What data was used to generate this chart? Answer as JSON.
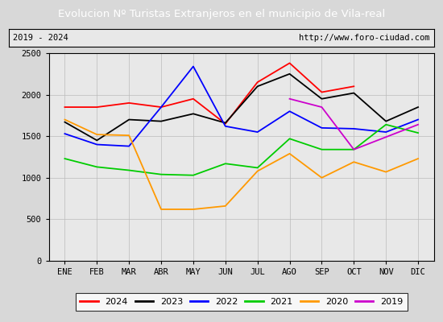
{
  "title": "Evolucion Nº Turistas Extranjeros en el municipio de Vila-real",
  "subtitle_left": "2019 - 2024",
  "subtitle_right": "http://www.foro-ciudad.com",
  "title_bg_color": "#4472c4",
  "title_text_color": "#ffffff",
  "subtitle_bg_color": "#e8e8e8",
  "background_color": "#d8d8d8",
  "plot_bg_color": "#e8e8e8",
  "months": [
    "ENE",
    "FEB",
    "MAR",
    "ABR",
    "MAY",
    "JUN",
    "JUL",
    "AGO",
    "SEP",
    "OCT",
    "NOV",
    "DIC"
  ],
  "ylim": [
    0,
    2500
  ],
  "yticks": [
    0,
    500,
    1000,
    1500,
    2000,
    2500
  ],
  "series": {
    "2024": {
      "color": "#ff0000",
      "values": [
        1850,
        1850,
        1900,
        1850,
        1950,
        1650,
        2150,
        2380,
        2030,
        2100,
        null,
        null
      ]
    },
    "2023": {
      "color": "#000000",
      "values": [
        1670,
        1450,
        1700,
        1680,
        1770,
        1660,
        2100,
        2250,
        1950,
        2020,
        1680,
        1850
      ]
    },
    "2022": {
      "color": "#0000ff",
      "values": [
        1530,
        1400,
        1380,
        1850,
        2340,
        1620,
        1550,
        1800,
        1600,
        1590,
        1550,
        1700
      ]
    },
    "2021": {
      "color": "#00cc00",
      "values": [
        1230,
        1130,
        1090,
        1040,
        1030,
        1170,
        1120,
        1470,
        1340,
        1340,
        1640,
        1540
      ]
    },
    "2020": {
      "color": "#ff9900",
      "values": [
        1700,
        1520,
        1510,
        620,
        620,
        660,
        1080,
        1290,
        1000,
        1190,
        1070,
        1230
      ]
    },
    "2019": {
      "color": "#cc00cc",
      "values": [
        null,
        null,
        null,
        null,
        null,
        null,
        null,
        1950,
        1850,
        1340,
        1490,
        1640
      ]
    }
  }
}
